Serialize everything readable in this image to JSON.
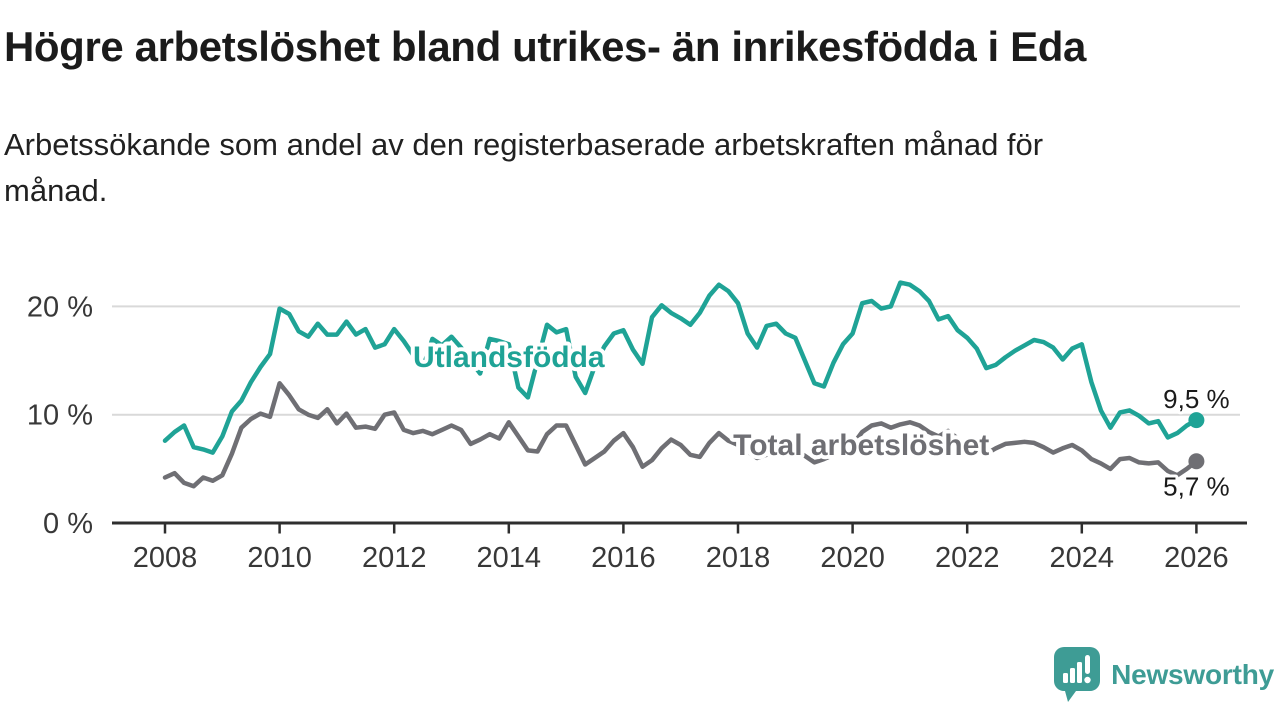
{
  "header": {
    "title": "Högre arbetslöshet bland utrikes- än inrikesfödda i Eda",
    "subtitle": "Arbetssökande som andel av den registerbaserade arbetskraften månad för månad.",
    "subtitle_lines": [
      "Arbetssökande som andel av den registerbaserade arbetskraften månad för",
      "månad."
    ]
  },
  "chart_data": {
    "type": "line",
    "title": "Högre arbetslöshet bland utrikes- än inrikesfödda i Eda",
    "subtitle": "Arbetssökande som andel av den registerbaserade arbetskraften månad för månad.",
    "unit": "%",
    "x_start_year": 2008,
    "x_step_months": 2,
    "x_end": "2025-12",
    "ylim": [
      0,
      23
    ],
    "grid": "horizontal",
    "legend_position": "inline-labels",
    "x_axis_ticks": [
      {
        "year": 2008,
        "label": "2008"
      },
      {
        "year": 2010,
        "label": "2010"
      },
      {
        "year": 2012,
        "label": "2012"
      },
      {
        "year": 2014,
        "label": "2014"
      },
      {
        "year": 2016,
        "label": "2016"
      },
      {
        "year": 2018,
        "label": "2018"
      },
      {
        "year": 2020,
        "label": "2020"
      },
      {
        "year": 2022,
        "label": "2022"
      },
      {
        "year": 2024,
        "label": "2024"
      },
      {
        "year": 2026,
        "label": "2026"
      }
    ],
    "y_axis_ticks": [
      {
        "value": 0,
        "label": "0 %"
      },
      {
        "value": 10,
        "label": "10 %"
      },
      {
        "value": 20,
        "label": "20 %"
      }
    ],
    "series": [
      {
        "name": "Utlandsfödda",
        "color": "#1FA396",
        "end_label": "9,5 %",
        "end_value": 9.5,
        "end_label_side": "above",
        "label_anchor": {
          "year": 2014.0,
          "pct": 15.4
        },
        "values": [
          7.6,
          8.4,
          9.0,
          7.0,
          6.8,
          6.5,
          8.0,
          10.3,
          11.3,
          13.0,
          14.4,
          15.6,
          19.8,
          19.3,
          17.7,
          17.2,
          18.4,
          17.4,
          17.4,
          18.6,
          17.4,
          17.9,
          16.2,
          16.5,
          17.9,
          16.8,
          15.5,
          14.3,
          17.0,
          16.4,
          17.2,
          16.2,
          15.0,
          13.8,
          17.0,
          16.8,
          16.5,
          12.5,
          11.6,
          15.0,
          18.3,
          17.6,
          17.9,
          13.5,
          12.0,
          14.5,
          16.3,
          17.5,
          17.8,
          16.0,
          14.7,
          19.0,
          20.1,
          19.4,
          18.9,
          18.3,
          19.4,
          21.0,
          22.0,
          21.4,
          20.3,
          17.5,
          16.2,
          18.2,
          18.4,
          17.5,
          17.1,
          15.0,
          12.9,
          12.6,
          14.8,
          16.5,
          17.5,
          20.3,
          20.5,
          19.8,
          20.0,
          22.2,
          22.0,
          21.4,
          20.5,
          18.8,
          19.1,
          17.8,
          17.1,
          16.1,
          14.3,
          14.6,
          15.3,
          15.9,
          16.4,
          16.9,
          16.7,
          16.2,
          15.1,
          16.1,
          16.5,
          13.0,
          10.4,
          8.8,
          10.2,
          10.4,
          9.9,
          9.2,
          9.4,
          7.9,
          8.3,
          9.0,
          9.5
        ]
      },
      {
        "name": "Total arbetslöshet",
        "color": "#6F6F74",
        "end_label": "5,7 %",
        "end_value": 5.7,
        "end_label_side": "below",
        "label_anchor": {
          "year": 2020.15,
          "pct": 7.3
        },
        "values": [
          4.2,
          4.6,
          3.7,
          3.4,
          4.2,
          3.9,
          4.4,
          6.4,
          8.8,
          9.6,
          10.1,
          9.8,
          12.9,
          11.8,
          10.5,
          10.0,
          9.7,
          10.5,
          9.2,
          10.1,
          8.8,
          8.9,
          8.7,
          10.0,
          10.2,
          8.6,
          8.3,
          8.5,
          8.2,
          8.6,
          9.0,
          8.6,
          7.3,
          7.7,
          8.2,
          7.8,
          9.3,
          8.0,
          6.7,
          6.6,
          8.2,
          9.0,
          9.0,
          7.2,
          5.4,
          6.0,
          6.6,
          7.6,
          8.3,
          7.0,
          5.2,
          5.8,
          6.9,
          7.7,
          7.2,
          6.3,
          6.1,
          7.4,
          8.3,
          7.6,
          7.2,
          6.6,
          6.0,
          6.3,
          6.8,
          6.6,
          6.8,
          6.2,
          5.6,
          5.9,
          6.3,
          6.7,
          7.2,
          8.4,
          9.0,
          9.2,
          8.8,
          9.1,
          9.3,
          9.0,
          8.4,
          8.0,
          8.5,
          7.8,
          7.0,
          6.5,
          6.4,
          6.9,
          7.3,
          7.4,
          7.5,
          7.4,
          7.0,
          6.5,
          6.9,
          7.2,
          6.7,
          5.9,
          5.5,
          5.0,
          5.9,
          6.0,
          5.6,
          5.5,
          5.6,
          4.8,
          4.4,
          5.0,
          5.7
        ]
      }
    ]
  },
  "colors": {
    "accent_teal": "#1FA396",
    "series_gray": "#6F6F74",
    "grid": "#D9D9D9",
    "axis": "#2E2E2E",
    "tick_text": "#383838",
    "value_text": "#1B1B1B",
    "brand_teal": "#3E9C95",
    "background": "#FFFFFF"
  },
  "footer": {
    "brand": "Newsworthy",
    "logo_icon": "speech-bubble-bar-chart-icon"
  }
}
